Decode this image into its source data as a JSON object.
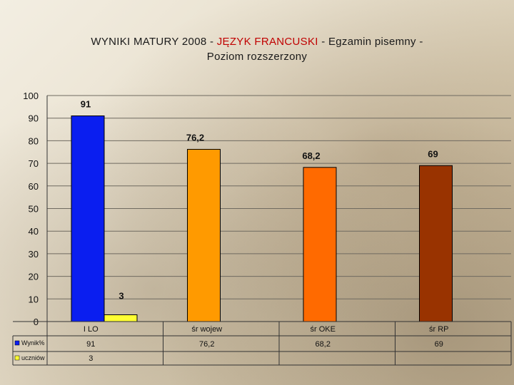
{
  "title": {
    "part1": "WYNIKI MATURY 2008  -  ",
    "accent": "JĘZYK FRANCUSKI",
    "part2": "  - Egzamin pisemny -",
    "line2": "Poziom rozszerzony"
  },
  "chart_data": {
    "type": "bar",
    "title": "WYNIKI MATURY 2008  -  JĘZYK FRANCUSKI  - Egzamin pisemny - Poziom rozszerzony",
    "categories": [
      "I LO",
      "śr wojew",
      "śr OKE",
      "śr RP"
    ],
    "series": [
      {
        "name": "Wynik%",
        "values": [
          91,
          76.2,
          68.2,
          69
        ],
        "value_labels": [
          "91",
          "76,2",
          "68,2",
          "69"
        ],
        "colors": [
          "#0a1ef0",
          "#ff9a00",
          "#ff6a00",
          "#993300"
        ]
      },
      {
        "name": "uczniów",
        "values": [
          3,
          null,
          null,
          null
        ],
        "value_labels": [
          "3",
          "",
          "",
          ""
        ],
        "color": "#ffff33"
      }
    ],
    "ylim": [
      0,
      100
    ],
    "yticks": [
      0,
      10,
      20,
      30,
      40,
      50,
      60,
      70,
      80,
      90,
      100
    ],
    "grid": true,
    "legend": "bottom-left data table"
  }
}
